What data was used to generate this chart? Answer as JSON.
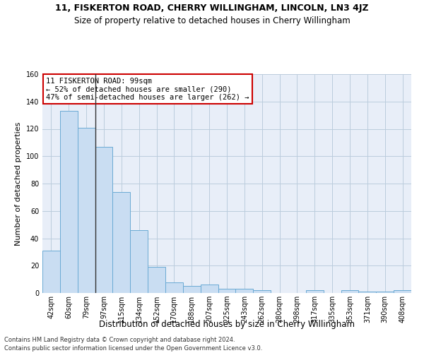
{
  "title": "11, FISKERTON ROAD, CHERRY WILLINGHAM, LINCOLN, LN3 4JZ",
  "subtitle": "Size of property relative to detached houses in Cherry Willingham",
  "xlabel": "Distribution of detached houses by size in Cherry Willingham",
  "ylabel": "Number of detached properties",
  "categories": [
    "42sqm",
    "60sqm",
    "79sqm",
    "97sqm",
    "115sqm",
    "134sqm",
    "152sqm",
    "170sqm",
    "188sqm",
    "207sqm",
    "225sqm",
    "243sqm",
    "262sqm",
    "280sqm",
    "298sqm",
    "317sqm",
    "335sqm",
    "353sqm",
    "371sqm",
    "390sqm",
    "408sqm"
  ],
  "values": [
    31,
    133,
    121,
    107,
    74,
    46,
    19,
    8,
    5,
    6,
    3,
    3,
    2,
    0,
    0,
    2,
    0,
    2,
    1,
    1,
    2
  ],
  "bar_color": "#c9ddf2",
  "bar_edge_color": "#6aaad4",
  "vline_x_index": 2.5,
  "vline_color": "#333333",
  "annotation_text": "11 FISKERTON ROAD: 99sqm\n← 52% of detached houses are smaller (290)\n47% of semi-detached houses are larger (262) →",
  "annotation_box_color": "white",
  "annotation_box_edge_color": "#cc0000",
  "ylim": [
    0,
    160
  ],
  "yticks": [
    0,
    20,
    40,
    60,
    80,
    100,
    120,
    140,
    160
  ],
  "grid_color": "#bbccdd",
  "bg_color": "#e8eef8",
  "footer1": "Contains HM Land Registry data © Crown copyright and database right 2024.",
  "footer2": "Contains public sector information licensed under the Open Government Licence v3.0.",
  "title_fontsize": 9,
  "subtitle_fontsize": 8.5,
  "xlabel_fontsize": 8.5,
  "ylabel_fontsize": 8,
  "tick_fontsize": 7,
  "annotation_fontsize": 7.5,
  "footer_fontsize": 6
}
